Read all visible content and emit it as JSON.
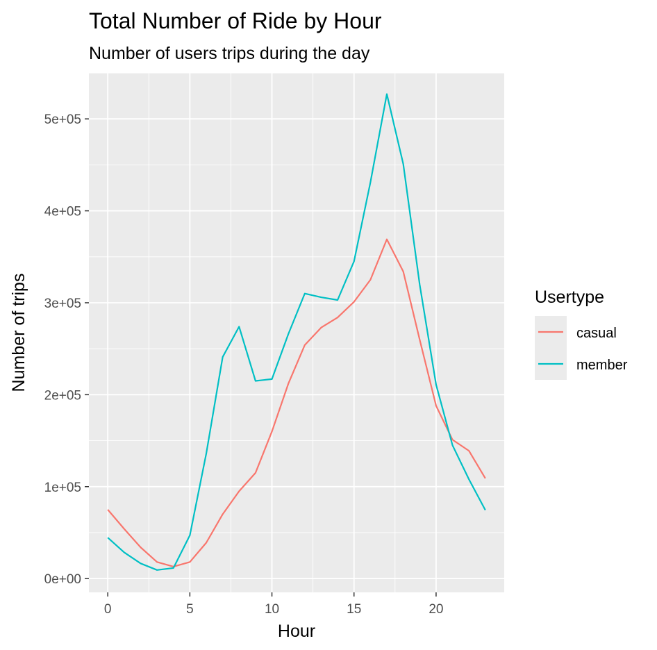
{
  "chart_data": {
    "type": "line",
    "title": "Total Number of Ride by Hour",
    "subtitle": "Number of users trips during the day",
    "xlabel": "Hour",
    "ylabel": "Number of trips",
    "xlim": [
      -1.15,
      24.15
    ],
    "ylim": [
      -15000,
      550000
    ],
    "x_ticks": [
      0,
      5,
      10,
      15,
      20
    ],
    "x_tick_labels": [
      "0",
      "5",
      "10",
      "15",
      "20"
    ],
    "y_ticks": [
      0,
      100000,
      200000,
      300000,
      400000,
      500000
    ],
    "y_tick_labels": [
      "0e+00",
      "1e+05",
      "2e+05",
      "3e+05",
      "4e+05",
      "5e+05"
    ],
    "grid": true,
    "legend": {
      "title": "Usertype",
      "position": "right",
      "entries": [
        "casual",
        "member"
      ]
    },
    "colors": {
      "casual": "#F8766D",
      "member": "#00BFC4",
      "panel": "#EBEBEB",
      "grid": "#FFFFFF"
    },
    "x": [
      0,
      1,
      2,
      3,
      4,
      5,
      6,
      7,
      8,
      9,
      10,
      11,
      12,
      13,
      14,
      15,
      16,
      17,
      18,
      19,
      20,
      21,
      22,
      23
    ],
    "series": [
      {
        "name": "casual",
        "values": [
          75000,
          54000,
          34000,
          18000,
          13000,
          18000,
          39000,
          70000,
          95000,
          115000,
          160000,
          212000,
          254000,
          273000,
          284000,
          301000,
          325000,
          369000,
          334000,
          260000,
          188000,
          151000,
          139000,
          109000
        ]
      },
      {
        "name": "member",
        "values": [
          44500,
          28500,
          16500,
          9300,
          11500,
          47000,
          136000,
          241000,
          274000,
          215000,
          217000,
          266000,
          310000,
          306000,
          303000,
          345000,
          431000,
          527000,
          451000,
          320000,
          211000,
          145000,
          108000,
          74500
        ]
      }
    ]
  }
}
